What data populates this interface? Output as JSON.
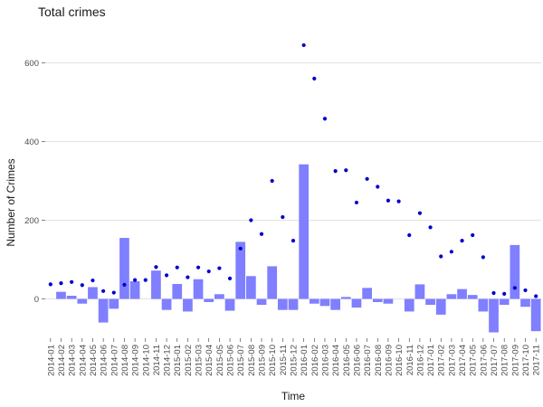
{
  "chart_data": {
    "type": "bar",
    "title": "Total crimes",
    "xlabel": "Time",
    "ylabel": "Number of Crimes",
    "ylim": [
      -100,
      700
    ],
    "yticks": [
      0,
      200,
      400,
      600
    ],
    "grid": true,
    "legend": "none",
    "categories": [
      "2014-01",
      "2014-02",
      "2014-03",
      "2014-04",
      "2014-05",
      "2014-06",
      "2014-07",
      "2014-08",
      "2014-09",
      "2014-10",
      "2014-11",
      "2014-12",
      "2015-01",
      "2015-02",
      "2015-03",
      "2015-04",
      "2015-05",
      "2015-06",
      "2015-07",
      "2015-08",
      "2015-09",
      "2015-10",
      "2015-11",
      "2015-12",
      "2016-01",
      "2016-02",
      "2016-03",
      "2016-04",
      "2016-05",
      "2016-06",
      "2016-07",
      "2016-08",
      "2016-09",
      "2016-10",
      "2016-11",
      "2016-12",
      "2017-01",
      "2017-02",
      "2017-03",
      "2017-04",
      "2017-05",
      "2017-06",
      "2017-07",
      "2017-08",
      "2017-09",
      "2017-10",
      "2017-11"
    ],
    "series": [
      {
        "kind": "bar",
        "color": "#7f7fff",
        "values": [
          0,
          18,
          8,
          -12,
          30,
          -60,
          -25,
          155,
          45,
          0,
          72,
          -28,
          38,
          -32,
          50,
          -8,
          12,
          -30,
          145,
          58,
          -15,
          83,
          -28,
          -28,
          342,
          -12,
          -18,
          -28,
          5,
          -22,
          28,
          -8,
          -12,
          0,
          -32,
          37,
          -15,
          -40,
          12,
          25,
          10,
          -32,
          -85,
          -15,
          137,
          -20,
          -82
        ]
      },
      {
        "kind": "point",
        "color": "#0000cc",
        "values": [
          37,
          40,
          43,
          35,
          47,
          20,
          16,
          36,
          48,
          48,
          81,
          60,
          80,
          55,
          80,
          70,
          78,
          52,
          128,
          200,
          165,
          300,
          208,
          148,
          645,
          560,
          458,
          325,
          327,
          245,
          305,
          285,
          250,
          248,
          162,
          218,
          182,
          108,
          120,
          148,
          162,
          106,
          15,
          13,
          28,
          22,
          7
        ]
      }
    ]
  }
}
